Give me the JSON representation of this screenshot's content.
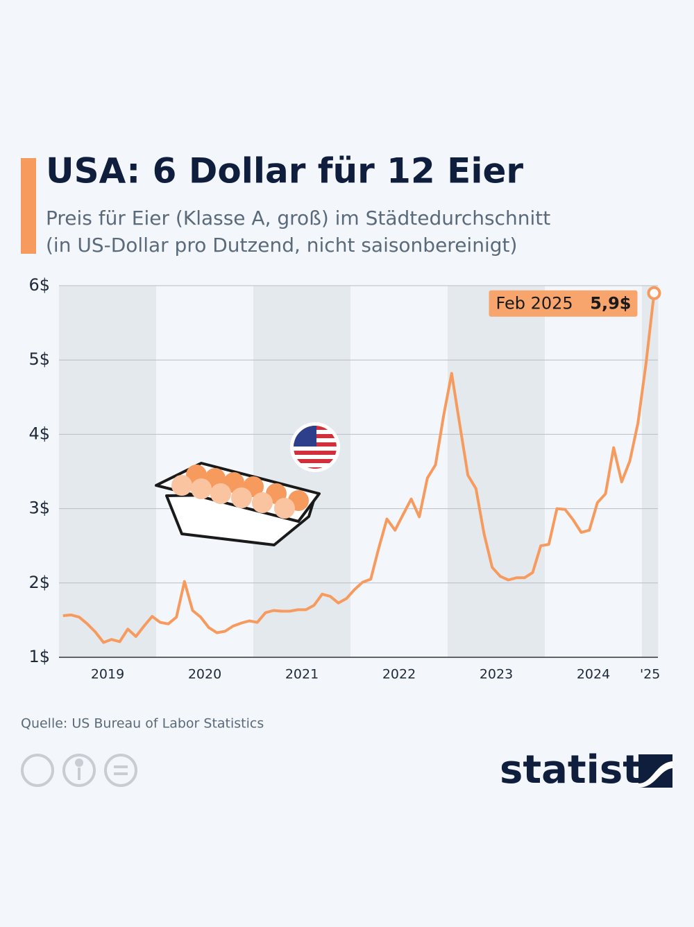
{
  "chart_data": {
    "type": "line",
    "title": "USA: 6 Dollar für 12 Eier",
    "subtitle": [
      "Preis für Eier (Klasse A, groß) im Städtedurchschnitt",
      "(in US-Dollar pro Dutzend, nicht saisonbereinigt)"
    ],
    "source": "Quelle: US Bureau of Labor Statistics",
    "brand": "statista",
    "annotation": "Feb 2025",
    "categories": [
      null,
      null,
      null,
      null,
      null,
      null,
      "2019",
      null,
      null,
      null,
      null,
      null,
      null,
      null,
      null,
      null,
      null,
      null,
      "2020",
      null,
      null,
      null,
      null,
      null,
      null,
      null,
      null,
      null,
      null,
      null,
      "2021",
      null,
      null,
      null,
      null,
      null,
      null,
      null,
      null,
      null,
      null,
      null,
      "2022",
      null,
      null,
      null,
      null,
      null,
      null,
      null,
      null,
      null,
      null,
      null,
      "2023",
      null,
      null,
      null,
      null,
      null,
      null,
      null,
      null,
      null,
      null,
      null,
      "2024",
      null,
      null,
      null,
      null,
      null,
      null,
      "'25"
    ],
    "series": [
      {
        "name": "Preis",
        "color": "#f79a5e",
        "values": [
          1.56,
          1.57,
          1.54,
          1.45,
          1.34,
          1.2,
          1.24,
          1.21,
          1.38,
          1.28,
          1.42,
          1.55,
          1.47,
          1.45,
          1.54,
          2.02,
          1.63,
          1.54,
          1.4,
          1.33,
          1.35,
          1.42,
          1.46,
          1.49,
          1.47,
          1.6,
          1.63,
          1.62,
          1.62,
          1.64,
          1.64,
          1.7,
          1.85,
          1.82,
          1.73,
          1.79,
          1.91,
          2.01,
          2.05,
          2.47,
          2.86,
          2.71,
          2.92,
          3.13,
          2.89,
          3.41,
          3.59,
          4.25,
          4.82,
          4.13,
          3.45,
          3.27,
          2.66,
          2.21,
          2.09,
          2.04,
          2.07,
          2.07,
          2.14,
          2.5,
          2.52,
          3.0,
          2.99,
          2.85,
          2.68,
          2.71,
          3.08,
          3.2,
          3.82,
          3.36,
          3.64,
          4.15,
          4.95,
          5.9
        ],
        "value_labels": [
          null,
          null,
          null,
          null,
          null,
          null,
          null,
          null,
          null,
          null,
          null,
          null,
          null,
          null,
          null,
          null,
          null,
          null,
          null,
          null,
          null,
          null,
          null,
          null,
          null,
          null,
          null,
          null,
          null,
          null,
          null,
          null,
          null,
          null,
          null,
          null,
          null,
          null,
          null,
          null,
          null,
          null,
          null,
          null,
          null,
          null,
          null,
          null,
          null,
          null,
          null,
          null,
          null,
          null,
          null,
          null,
          null,
          null,
          null,
          null,
          null,
          null,
          null,
          null,
          null,
          null,
          null,
          null,
          null,
          null,
          null,
          null,
          null,
          "5,9$"
        ]
      }
    ],
    "ylim": [
      1,
      6
    ],
    "yticks": [
      {
        "value": 1,
        "label": "1$"
      },
      {
        "value": 2,
        "label": "2$"
      },
      {
        "value": 3,
        "label": "3$"
      },
      {
        "value": 4,
        "label": "4$"
      },
      {
        "value": 5,
        "label": "5$"
      },
      {
        "value": 6,
        "label": "6$"
      }
    ],
    "grid": true
  }
}
